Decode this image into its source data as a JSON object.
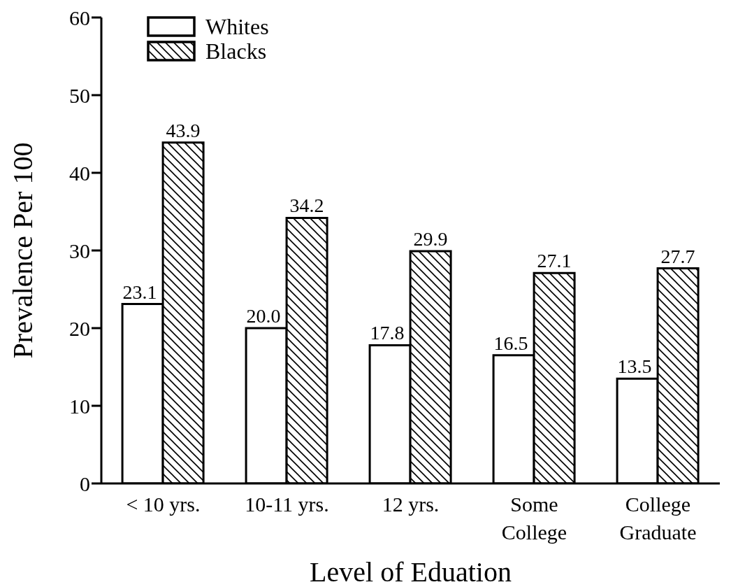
{
  "chart_data": {
    "type": "bar",
    "xlabel": "Level of Eduation",
    "ylabel": "Prevalence Per 100",
    "categories": [
      "< 10 yrs.",
      "10-11 yrs.",
      "12 yrs.",
      "Some\nCollege",
      "College\nGraduate"
    ],
    "series": [
      {
        "name": "Whites",
        "color": "#ffffff",
        "values": [
          23.1,
          20.0,
          17.8,
          16.5,
          13.5
        ],
        "value_labels": [
          "23.1",
          "20.0",
          "17.8",
          "16.5",
          "13.5"
        ]
      },
      {
        "name": "Blacks",
        "color": "#000000",
        "values": [
          43.9,
          34.2,
          29.9,
          27.1,
          27.7
        ],
        "value_labels": [
          "43.9",
          "34.2",
          "29.9",
          "27.1",
          "27.7"
        ]
      }
    ],
    "ylim": [
      0,
      60
    ],
    "yticks": [
      0,
      10,
      20,
      30,
      40,
      50,
      60
    ],
    "grid": false,
    "legend": "top left"
  }
}
